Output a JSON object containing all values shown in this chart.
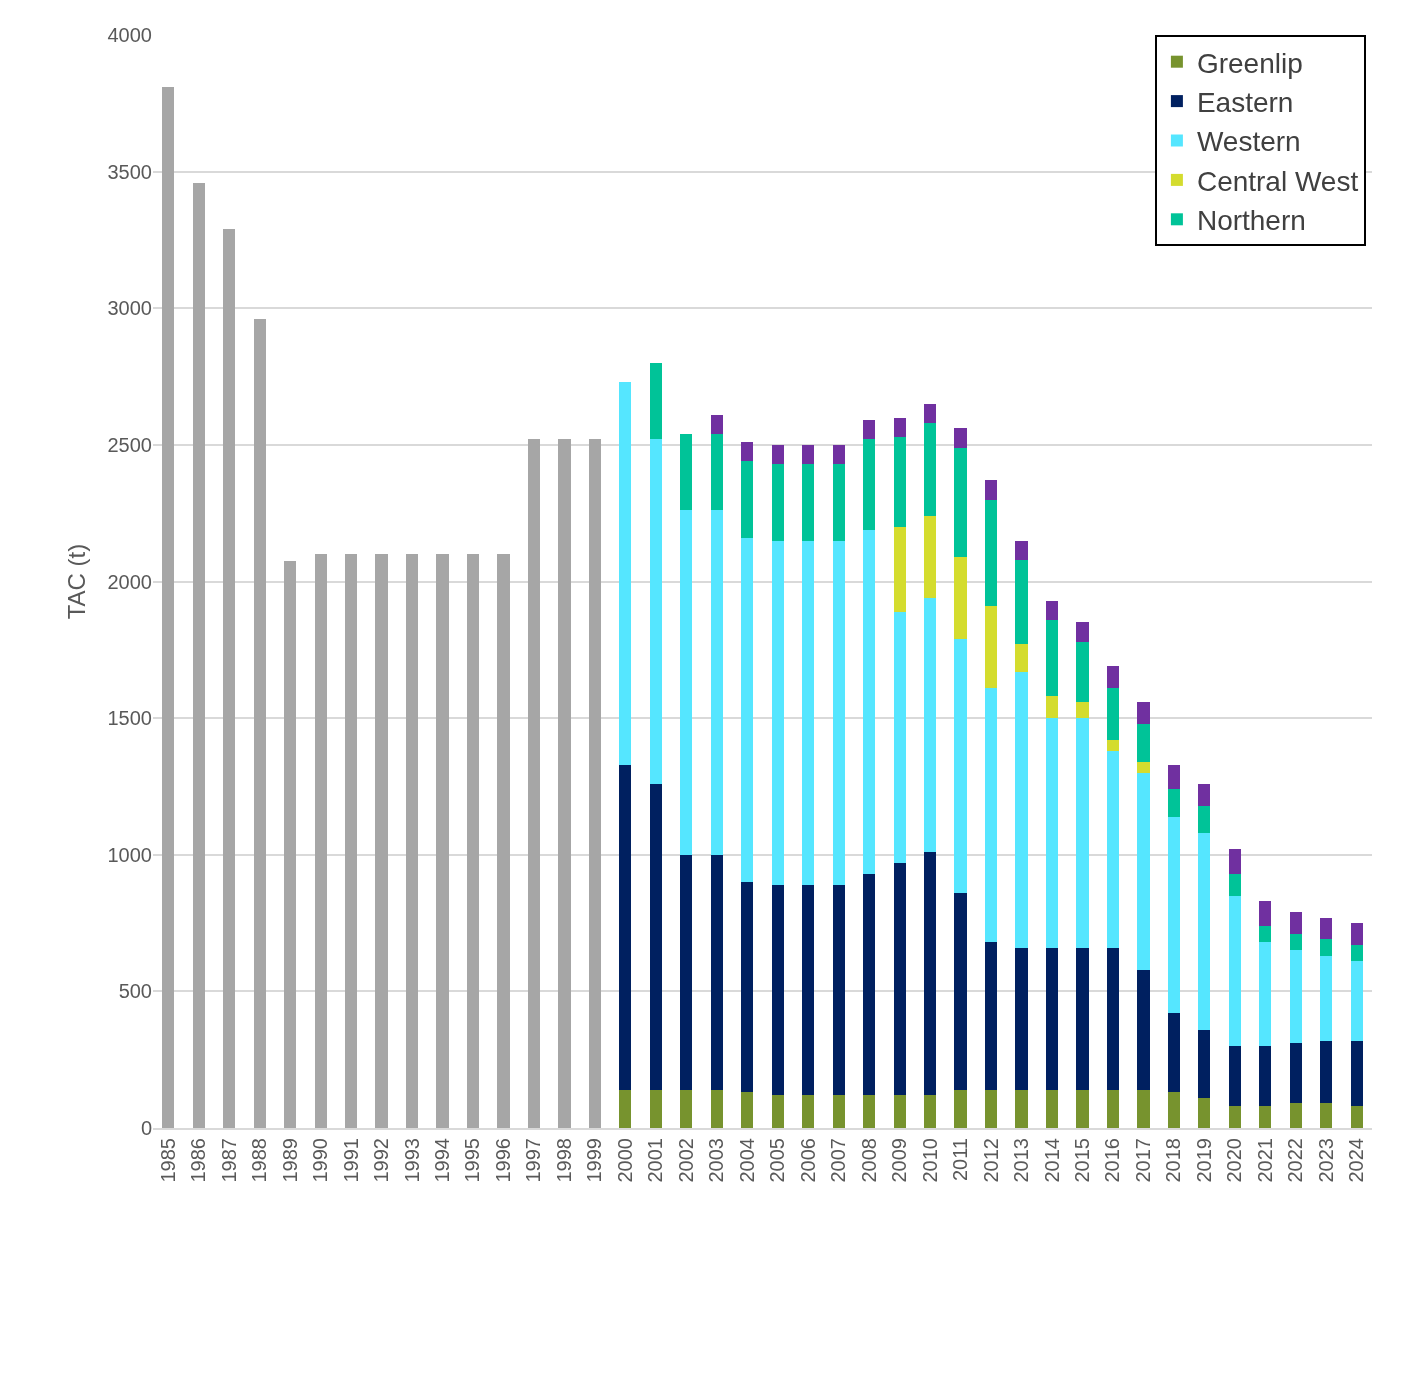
{
  "chart_data": {
    "type": "bar",
    "stacked": true,
    "ylabel": "TAC (t)",
    "categories": [
      "1985",
      "1986",
      "1987",
      "1988",
      "1989",
      "1990",
      "1991",
      "1992",
      "1993",
      "1994",
      "1995",
      "1996",
      "1997",
      "1998",
      "1999",
      "2000",
      "2001",
      "2002",
      "2003",
      "2004",
      "2005",
      "2006",
      "2007",
      "2008",
      "2009",
      "2010",
      "2011",
      "2012",
      "2013",
      "2014",
      "2015",
      "2016",
      "2017",
      "2018",
      "2019",
      "2020",
      "2021",
      "2022",
      "2023",
      "2024"
    ],
    "series": [
      {
        "color": "#a6a6a6",
        "values": [
          3810,
          3460,
          3290,
          2960,
          2075,
          2100,
          2100,
          2100,
          2100,
          2100,
          2100,
          2100,
          2520,
          2520,
          2520,
          null,
          null,
          null,
          null,
          null,
          null,
          null,
          null,
          null,
          null,
          null,
          null,
          null,
          null,
          null,
          null,
          null,
          null,
          null,
          null,
          null,
          null,
          null,
          null,
          null
        ]
      },
      {
        "name": "Greenlip",
        "color": "#77932e",
        "values": [
          null,
          null,
          null,
          null,
          null,
          null,
          null,
          null,
          null,
          null,
          null,
          null,
          null,
          null,
          null,
          140,
          140,
          140,
          140,
          130,
          120,
          120,
          120,
          120,
          120,
          120,
          140,
          140,
          140,
          140,
          140,
          140,
          140,
          130,
          110,
          80,
          80,
          90,
          90,
          80
        ]
      },
      {
        "name": "Eastern",
        "color": "#002060",
        "values": [
          null,
          null,
          null,
          null,
          null,
          null,
          null,
          null,
          null,
          null,
          null,
          null,
          null,
          null,
          null,
          1190,
          1120,
          860,
          860,
          770,
          770,
          770,
          770,
          810,
          850,
          890,
          720,
          540,
          520,
          520,
          520,
          520,
          440,
          290,
          250,
          220,
          220,
          220,
          230,
          240
        ]
      },
      {
        "name": "Western",
        "color": "#55e6ff",
        "values": [
          null,
          null,
          null,
          null,
          null,
          null,
          null,
          null,
          null,
          null,
          null,
          null,
          null,
          null,
          null,
          1400,
          1260,
          1260,
          1260,
          1260,
          1260,
          1260,
          1260,
          1260,
          920,
          930,
          930,
          930,
          1010,
          840,
          840,
          720,
          720,
          720,
          720,
          550,
          380,
          340,
          310,
          290
        ]
      },
      {
        "name": "Central West",
        "color": "#d4dc2e",
        "values": [
          null,
          null,
          null,
          null,
          null,
          null,
          null,
          null,
          null,
          null,
          null,
          null,
          null,
          null,
          null,
          null,
          null,
          null,
          null,
          null,
          null,
          null,
          null,
          null,
          310,
          300,
          300,
          300,
          100,
          80,
          60,
          40,
          40,
          null,
          null,
          null,
          null,
          null,
          null,
          null
        ]
      },
      {
        "name": "Northern",
        "color": "#00c398",
        "values": [
          null,
          null,
          null,
          null,
          null,
          null,
          null,
          null,
          null,
          null,
          null,
          null,
          null,
          null,
          null,
          null,
          280,
          280,
          280,
          280,
          280,
          280,
          280,
          330,
          330,
          340,
          400,
          390,
          310,
          280,
          220,
          190,
          140,
          100,
          100,
          80,
          60,
          60,
          60,
          60
        ]
      },
      {
        "color": "#7030a0",
        "values": [
          null,
          null,
          null,
          null,
          null,
          null,
          null,
          null,
          null,
          null,
          null,
          null,
          null,
          null,
          null,
          null,
          null,
          null,
          70,
          70,
          70,
          70,
          70,
          70,
          70,
          70,
          70,
          70,
          70,
          70,
          70,
          80,
          80,
          90,
          80,
          90,
          90,
          80,
          80,
          80
        ]
      }
    ],
    "ylim": [
      0,
      4000
    ],
    "yticks": [
      0,
      500,
      1000,
      1500,
      2000,
      2500,
      3000,
      3500,
      4000
    ],
    "grid": "y",
    "legend": "top right"
  }
}
